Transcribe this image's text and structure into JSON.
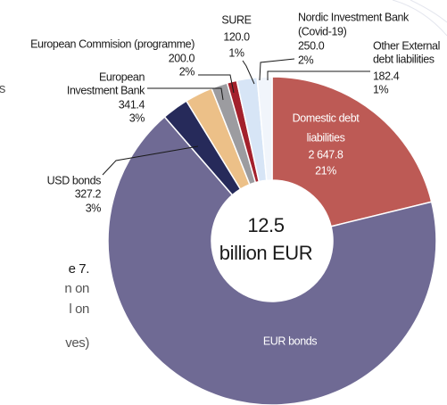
{
  "chart_data": {
    "type": "donut",
    "total": 12.5,
    "total_unit": "billion EUR",
    "categories": [
      [
        "Domestic debt",
        "liabilities"
      ],
      [
        "EUR bonds"
      ],
      [
        "USD bonds"
      ],
      [
        "European",
        "Investment Bank"
      ],
      [
        "European Commision (programme)"
      ],
      [
        "SURE"
      ],
      [
        "Nordic Investment Bank",
        "(Covid-19)"
      ],
      [
        "Other External",
        "debt liabilities"
      ]
    ],
    "values": [
      2647.8,
      8431.2,
      327.2,
      341.4,
      200.0,
      120.0,
      250.0,
      182.4
    ],
    "value_labels": [
      "2 647.8",
      null,
      "327.2",
      "341.4",
      "200.0",
      "120.0",
      "250.0",
      "182.4"
    ],
    "percent_labels": [
      "21%",
      null,
      "3%",
      "3%",
      "2%",
      "1%",
      "2%",
      "1%"
    ],
    "colors": [
      "#bd5a55",
      "#6f6a94",
      "#262a5a",
      "#ecc088",
      "#9c9ca0",
      "#a3212c",
      "#d7e5f6",
      "#f1f5fb"
    ],
    "side_text": [
      "s",
      "e 7.",
      "n on",
      "l on",
      "ves)"
    ]
  }
}
